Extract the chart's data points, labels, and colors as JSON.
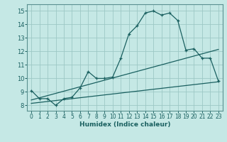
{
  "xlabel": "Humidex (Indice chaleur)",
  "bg_color": "#c5e8e5",
  "grid_color": "#9dc8c5",
  "line_color": "#1a6060",
  "axis_border_color": "#5a9090",
  "xlim": [
    -0.5,
    23.5
  ],
  "ylim": [
    7.6,
    15.5
  ],
  "xticks": [
    0,
    1,
    2,
    3,
    4,
    5,
    6,
    7,
    8,
    9,
    10,
    11,
    12,
    13,
    14,
    15,
    16,
    17,
    18,
    19,
    20,
    21,
    22,
    23
  ],
  "yticks": [
    8,
    9,
    10,
    11,
    12,
    13,
    14,
    15
  ],
  "line1_x": [
    0,
    1,
    2,
    3,
    4,
    5,
    6,
    7,
    8,
    9,
    10,
    11,
    12,
    13,
    14,
    15,
    16,
    17,
    18,
    19,
    20,
    21,
    22,
    23
  ],
  "line1_y": [
    9.1,
    8.5,
    8.5,
    8.0,
    8.5,
    8.6,
    9.3,
    10.5,
    10.0,
    10.0,
    10.1,
    11.5,
    13.3,
    13.9,
    14.85,
    15.0,
    14.7,
    14.85,
    14.3,
    12.1,
    12.2,
    11.5,
    11.5,
    9.8
  ],
  "line2_x": [
    0,
    23
  ],
  "line2_y": [
    8.15,
    9.75
  ],
  "line3_x": [
    0,
    23
  ],
  "line3_y": [
    8.4,
    12.15
  ]
}
